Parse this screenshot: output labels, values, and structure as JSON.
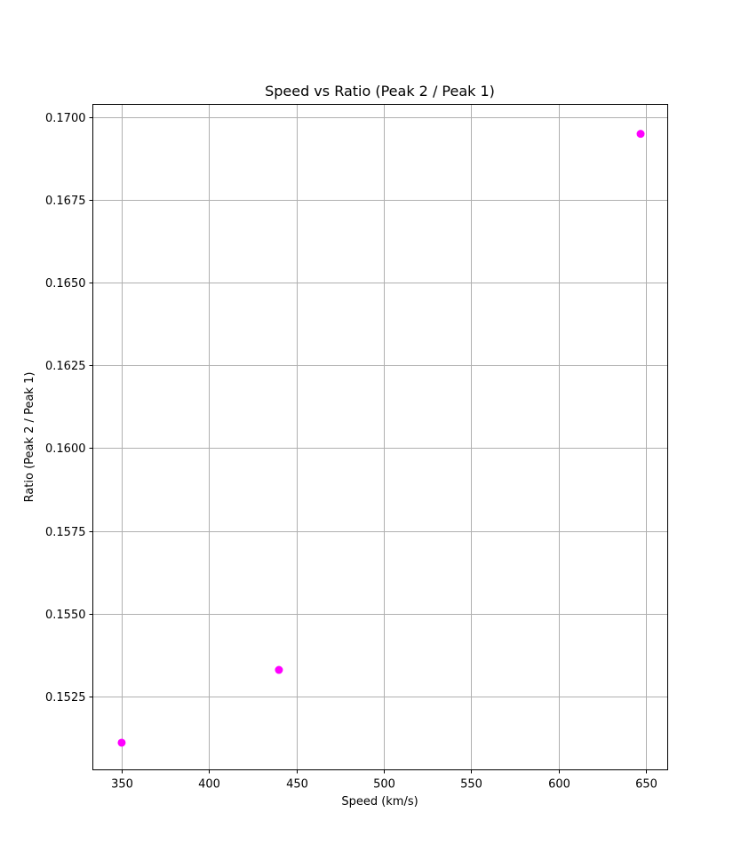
{
  "chart_data": {
    "type": "scatter",
    "title": "Speed vs Ratio (Peak 2 / Peak 1)",
    "xlabel": "Speed (km/s)",
    "ylabel": "Ratio (Peak 2 / Peak 1)",
    "xlim": [
      333.5,
      662.5
    ],
    "ylim": [
      0.15028,
      0.17039
    ],
    "xticks": [
      350,
      400,
      450,
      500,
      550,
      600,
      650
    ],
    "xtick_labels": [
      "350",
      "400",
      "450",
      "500",
      "550",
      "600",
      "650"
    ],
    "yticks": [
      0.1525,
      0.155,
      0.1575,
      0.16,
      0.1625,
      0.165,
      0.1675,
      0.17
    ],
    "ytick_labels": [
      "0.1525",
      "0.1550",
      "0.1575",
      "0.1600",
      "0.1625",
      "0.1650",
      "0.1675",
      "0.1700"
    ],
    "grid": true,
    "legend": false,
    "marker_color": "#ff00ff",
    "grid_color": "#b0b0b0",
    "points": [
      {
        "x": 350,
        "y": 0.1511
      },
      {
        "x": 440,
        "y": 0.1533
      },
      {
        "x": 647,
        "y": 0.1695
      }
    ]
  }
}
